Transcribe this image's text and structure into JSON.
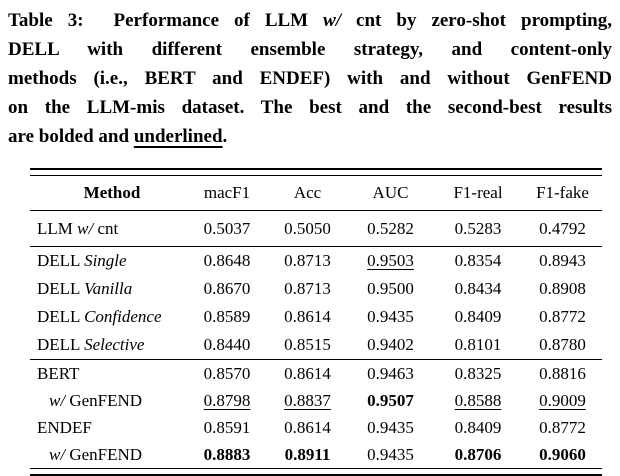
{
  "caption": {
    "lines": [
      [
        {
          "text": "Table 3:  Performance of LLM "
        },
        {
          "text": "w/",
          "italic": true
        },
        {
          "text": " cnt by zero-shot prompting,"
        }
      ],
      [
        {
          "text": "DELL with different ensemble strategy, and content-only"
        }
      ],
      [
        {
          "text": "methods (i.e., BERT and ENDEF) with and without GenFEND"
        }
      ],
      [
        {
          "text": "on the LLM-mis dataset. The best and the second-best results"
        }
      ],
      [
        {
          "text": "are bolded and "
        },
        {
          "text": "underlined",
          "underline": true
        },
        {
          "text": "."
        }
      ]
    ]
  },
  "table": {
    "columns": [
      {
        "label": "Method",
        "bold": true
      },
      {
        "label": "macF1"
      },
      {
        "label": "Acc"
      },
      {
        "label": "AUC"
      },
      {
        "label": "F1-real"
      },
      {
        "label": "F1-fake"
      }
    ],
    "groups": [
      {
        "rows": [
          {
            "method": [
              {
                "text": "LLM "
              },
              {
                "text": "w/",
                "italic": true
              },
              {
                "text": " cnt"
              }
            ],
            "values": [
              {
                "v": "0.5037"
              },
              {
                "v": "0.5050"
              },
              {
                "v": "0.5282"
              },
              {
                "v": "0.5283"
              },
              {
                "v": "0.4792"
              }
            ]
          }
        ]
      },
      {
        "rows": [
          {
            "method": [
              {
                "text": "DELL "
              },
              {
                "text": "Single",
                "italic": true
              }
            ],
            "values": [
              {
                "v": "0.8648"
              },
              {
                "v": "0.8713"
              },
              {
                "v": "0.9503",
                "underline": true
              },
              {
                "v": "0.8354"
              },
              {
                "v": "0.8943"
              }
            ]
          },
          {
            "method": [
              {
                "text": "DELL "
              },
              {
                "text": "Vanilla",
                "italic": true
              }
            ],
            "values": [
              {
                "v": "0.8670"
              },
              {
                "v": "0.8713"
              },
              {
                "v": "0.9500"
              },
              {
                "v": "0.8434"
              },
              {
                "v": "0.8908"
              }
            ]
          },
          {
            "method": [
              {
                "text": "DELL "
              },
              {
                "text": "Confidence",
                "italic": true
              }
            ],
            "values": [
              {
                "v": "0.8589"
              },
              {
                "v": "0.8614"
              },
              {
                "v": "0.9435"
              },
              {
                "v": "0.8409"
              },
              {
                "v": "0.8772"
              }
            ]
          },
          {
            "method": [
              {
                "text": "DELL "
              },
              {
                "text": "Selective",
                "italic": true
              }
            ],
            "values": [
              {
                "v": "0.8440"
              },
              {
                "v": "0.8515"
              },
              {
                "v": "0.9402"
              },
              {
                "v": "0.8101"
              },
              {
                "v": "0.8780"
              }
            ]
          }
        ]
      },
      {
        "rows": [
          {
            "method": [
              {
                "text": "BERT"
              }
            ],
            "values": [
              {
                "v": "0.8570"
              },
              {
                "v": "0.8614"
              },
              {
                "v": "0.9463"
              },
              {
                "v": "0.8325"
              },
              {
                "v": "0.8816"
              }
            ]
          },
          {
            "indent": true,
            "method": [
              {
                "text": "w/",
                "italic": true
              },
              {
                "text": " GenFEND"
              }
            ],
            "values": [
              {
                "v": "0.8798",
                "underline": true
              },
              {
                "v": "0.8837",
                "underline": true
              },
              {
                "v": "0.9507",
                "bold": true
              },
              {
                "v": "0.8588",
                "underline": true
              },
              {
                "v": "0.9009",
                "underline": true
              }
            ]
          },
          {
            "method": [
              {
                "text": "ENDEF"
              }
            ],
            "values": [
              {
                "v": "0.8591"
              },
              {
                "v": "0.8614"
              },
              {
                "v": "0.9435"
              },
              {
                "v": "0.8409"
              },
              {
                "v": "0.8772"
              }
            ]
          },
          {
            "indent": true,
            "method": [
              {
                "text": "w/",
                "italic": true
              },
              {
                "text": " GenFEND"
              }
            ],
            "values": [
              {
                "v": "0.8883",
                "bold": true
              },
              {
                "v": "0.8911",
                "bold": true
              },
              {
                "v": "0.9435"
              },
              {
                "v": "0.8706",
                "bold": true
              },
              {
                "v": "0.9060",
                "bold": true
              }
            ]
          }
        ]
      }
    ],
    "colors": {
      "text": "#000000",
      "background": "#ffffff",
      "rule": "#000000"
    }
  }
}
